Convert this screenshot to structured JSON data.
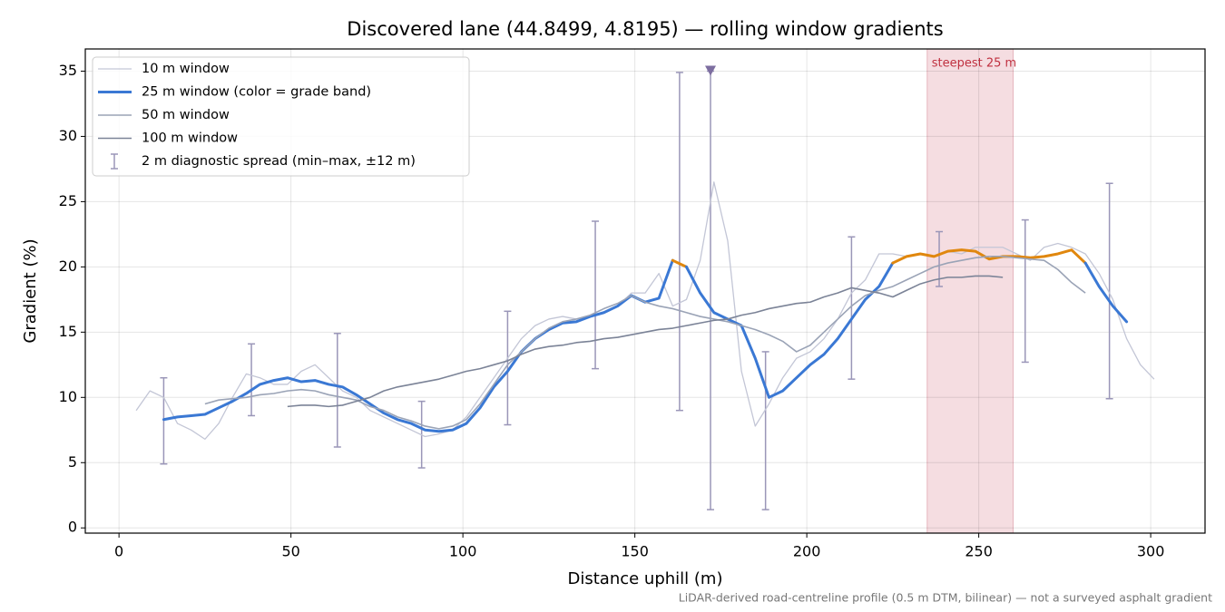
{
  "chart_data": {
    "type": "line",
    "title": "Discovered lane (44.8499, 4.8195) — rolling window gradients",
    "x_label": "Distance uphill (m)",
    "y_label": "Gradient (%)",
    "footnote": "LiDAR-derived road-centreline profile (0.5 m DTM, bilinear) — not a surveyed asphalt gradient",
    "xlim": [
      -9.8,
      315.8
    ],
    "ylim": [
      -0.4,
      36.7
    ],
    "xticks": [
      0,
      50,
      100,
      150,
      200,
      250,
      300
    ],
    "yticks": [
      0,
      5,
      10,
      15,
      20,
      25,
      30,
      35
    ],
    "grid": true,
    "legend": "upper-left",
    "x": [
      5,
      9,
      13,
      17,
      21,
      25,
      29,
      33,
      37,
      41,
      45,
      49,
      53,
      57,
      61,
      65,
      69,
      73,
      77,
      81,
      85,
      89,
      93,
      97,
      101,
      105,
      109,
      113,
      117,
      121,
      125,
      129,
      133,
      137,
      141,
      145,
      149,
      153,
      157,
      161,
      165,
      169,
      173,
      177,
      181,
      185,
      189,
      193,
      197,
      201,
      205,
      209,
      213,
      217,
      221,
      225,
      229,
      233,
      237,
      241,
      245,
      249,
      253,
      257,
      261,
      265,
      269,
      273,
      277,
      281,
      285,
      289,
      293,
      297,
      301
    ],
    "series": [
      {
        "name": "10 m window",
        "color": "#c3c6d6",
        "width": 1.3,
        "values": [
          9.0,
          10.5,
          10.0,
          8.0,
          7.5,
          6.8,
          8.0,
          10.0,
          11.8,
          11.5,
          11.0,
          11.0,
          12.0,
          12.5,
          11.5,
          10.5,
          10.0,
          9.0,
          8.5,
          8.0,
          7.5,
          7.0,
          7.2,
          7.5,
          8.5,
          10.0,
          11.5,
          13.0,
          14.5,
          15.5,
          16.0,
          16.2,
          16.0,
          16.3,
          16.5,
          17.0,
          18.0,
          18.0,
          19.5,
          17.0,
          17.5,
          20.5,
          26.5,
          22.0,
          12.0,
          7.8,
          9.5,
          11.5,
          13.0,
          13.5,
          14.5,
          16.0,
          18.0,
          19.0,
          21.0,
          21.0,
          20.8,
          21.0,
          20.8,
          21.2,
          21.0,
          21.5,
          21.5,
          21.5,
          21.0,
          20.5,
          21.5,
          21.8,
          21.5,
          21.0,
          19.5,
          17.5,
          14.5,
          12.5,
          11.4
        ]
      },
      {
        "name": "25 m window (color = grade band)",
        "color": "#3a78d4",
        "band_threshold": 20,
        "band_color": "#e0870e",
        "width": 3,
        "values": [
          null,
          null,
          8.3,
          8.5,
          8.6,
          8.7,
          9.2,
          9.7,
          10.3,
          11.0,
          11.3,
          11.5,
          11.2,
          11.3,
          11.0,
          10.8,
          10.2,
          9.5,
          8.8,
          8.3,
          8.0,
          7.5,
          7.4,
          7.5,
          8.0,
          9.2,
          10.8,
          12.0,
          13.5,
          14.5,
          15.2,
          15.7,
          15.8,
          16.2,
          16.5,
          17.0,
          17.8,
          17.3,
          17.6,
          20.5,
          20.0,
          18.0,
          16.5,
          16.0,
          15.5,
          13.0,
          10.0,
          10.5,
          11.5,
          12.5,
          13.3,
          14.5,
          16.0,
          17.5,
          18.5,
          20.3,
          20.8,
          21.0,
          20.8,
          21.2,
          21.3,
          21.2,
          20.6,
          20.8,
          20.8,
          20.7,
          20.8,
          21.0,
          21.3,
          20.3,
          18.5,
          17.0,
          15.8,
          null,
          null
        ]
      },
      {
        "name": "50 m window",
        "color": "#9aa3b6",
        "width": 1.6,
        "values": [
          null,
          null,
          null,
          null,
          null,
          9.5,
          9.8,
          9.9,
          10.0,
          10.2,
          10.3,
          10.5,
          10.6,
          10.5,
          10.2,
          10.0,
          9.8,
          9.3,
          9.0,
          8.5,
          8.2,
          7.8,
          7.6,
          7.8,
          8.3,
          9.5,
          11.0,
          12.5,
          13.5,
          14.5,
          15.3,
          15.8,
          16.0,
          16.3,
          16.8,
          17.2,
          17.8,
          17.3,
          17.0,
          16.8,
          16.5,
          16.2,
          16.0,
          15.8,
          15.5,
          15.2,
          14.8,
          14.3,
          13.5,
          14.0,
          15.0,
          16.0,
          17.0,
          17.8,
          18.2,
          18.5,
          19.0,
          19.5,
          20.0,
          20.3,
          20.5,
          20.7,
          20.8,
          20.8,
          20.7,
          20.6,
          20.5,
          19.8,
          18.8,
          18.0,
          null,
          null,
          null,
          null,
          null
        ]
      },
      {
        "name": "100 m window",
        "color": "#7b8397",
        "width": 1.6,
        "values": [
          null,
          null,
          null,
          null,
          null,
          null,
          null,
          null,
          null,
          null,
          null,
          9.3,
          9.4,
          9.4,
          9.3,
          9.4,
          9.7,
          10.0,
          10.5,
          10.8,
          11.0,
          11.2,
          11.4,
          11.7,
          12.0,
          12.2,
          12.5,
          12.8,
          13.3,
          13.7,
          13.9,
          14.0,
          14.2,
          14.3,
          14.5,
          14.6,
          14.8,
          15.0,
          15.2,
          15.3,
          15.5,
          15.7,
          15.9,
          16.0,
          16.3,
          16.5,
          16.8,
          17.0,
          17.2,
          17.3,
          17.7,
          18.0,
          18.4,
          18.2,
          18.0,
          17.7,
          18.2,
          18.7,
          19.0,
          19.2,
          19.2,
          19.3,
          19.3,
          19.2,
          null,
          null,
          null,
          null,
          null,
          null,
          null,
          null,
          null,
          null,
          null
        ]
      }
    ],
    "spread": {
      "name": "2 m diagnostic spread (min–max, ±12 m)",
      "color": "#9a96b8",
      "x": [
        13,
        38.5,
        63.5,
        88,
        113,
        138.5,
        163,
        172,
        188,
        213,
        238.5,
        263.5,
        288
      ],
      "low": [
        4.9,
        8.6,
        6.2,
        4.6,
        7.9,
        12.2,
        9.0,
        1.4,
        1.4,
        11.4,
        18.5,
        12.7,
        9.9
      ],
      "high": [
        11.5,
        14.1,
        14.9,
        9.7,
        16.6,
        23.5,
        34.9,
        35,
        13.5,
        22.3,
        22.7,
        23.6,
        26.4
      ]
    },
    "marker": {
      "x": 172,
      "y": 35,
      "color": "#7d6ea0"
    },
    "highlight": {
      "label": "steepest 25 m",
      "x": [
        235,
        260
      ],
      "color": "#e8b4bc"
    }
  }
}
